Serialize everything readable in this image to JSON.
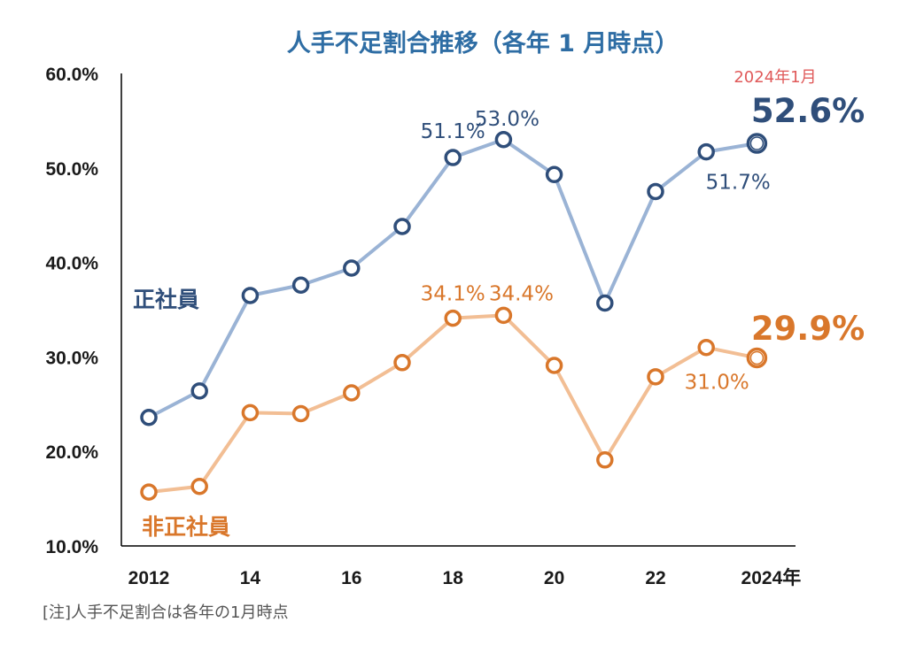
{
  "colors": {
    "title": "#2E6DA4",
    "regular_line": "#9AB3D5",
    "regular_marker": "#2F4E7A",
    "regular_text": "#2F4E7A",
    "nonregular_line": "#F2BE94",
    "nonregular_marker": "#D9772B",
    "nonregular_text": "#D9772B",
    "highlight_red": "#E05A5A",
    "axis": "#000000"
  },
  "chart_data": {
    "type": "line",
    "title": "人手不足割合推移（各年 1 月時点）",
    "x": [
      2012,
      2013,
      2014,
      2015,
      2016,
      2017,
      2018,
      2019,
      2020,
      2021,
      2022,
      2023,
      2024
    ],
    "xtick_labels": [
      "2012",
      "14",
      "16",
      "18",
      "20",
      "22",
      "2024年"
    ],
    "xtick_values": [
      2012,
      2014,
      2016,
      2018,
      2020,
      2022,
      2024
    ],
    "ylim": [
      10,
      60
    ],
    "yticks": [
      10,
      20,
      30,
      40,
      50,
      60
    ],
    "ytick_labels": [
      "10.0%",
      "20.0%",
      "30.0%",
      "40.0%",
      "50.0%",
      "60.0%"
    ],
    "series": [
      {
        "name": "正社員",
        "values": [
          23.6,
          26.4,
          36.5,
          37.6,
          39.4,
          43.8,
          51.1,
          53.0,
          49.3,
          35.7,
          47.5,
          51.7,
          52.6
        ],
        "labels": [
          {
            "index": 6,
            "text": "51.1%"
          },
          {
            "index": 7,
            "text": "53.0%"
          },
          {
            "index": 11,
            "text": "51.7%"
          }
        ],
        "highlight_text": "52.6%"
      },
      {
        "name": "非正社員",
        "values": [
          15.7,
          16.3,
          24.1,
          24.0,
          26.2,
          29.4,
          34.1,
          34.4,
          29.1,
          19.1,
          27.9,
          31.0,
          29.9
        ],
        "labels": [
          {
            "index": 6,
            "text": "34.1%"
          },
          {
            "index": 7,
            "text": "34.4%"
          },
          {
            "index": 11,
            "text": "31.0%"
          }
        ],
        "highlight_text": "29.9%"
      }
    ],
    "annotation": "2024年1月",
    "note": "[注]人手不足割合は各年の1月時点"
  }
}
